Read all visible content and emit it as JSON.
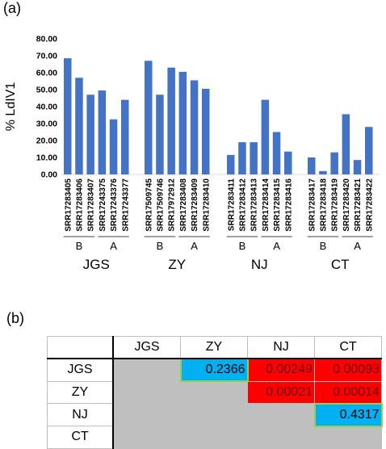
{
  "panel_a_label": "(a)",
  "panel_b_label": "(b)",
  "colors": {
    "bar": "#4472c4",
    "sig_high": "#00b0f0",
    "sig_low": "#ff0000",
    "na": "#bfbfbf"
  },
  "chart_data": {
    "type": "bar",
    "ylabel": "% LdIV1",
    "ylim": [
      0,
      80
    ],
    "yticks": [
      "0.00",
      "10.00",
      "20.00",
      "30.00",
      "40.00",
      "50.00",
      "60.00",
      "70.00",
      "80.00"
    ],
    "grid": false,
    "groups": [
      {
        "name": "JGS",
        "subgroups": [
          {
            "name": "B",
            "samples": [
              {
                "label": "SRR17283405",
                "value": 68.5
              },
              {
                "label": "SRR17283406",
                "value": 57.0
              },
              {
                "label": "SRR17283407",
                "value": 47.0
              }
            ]
          },
          {
            "name": "A",
            "samples": [
              {
                "label": "SRR17243375",
                "value": 49.5
              },
              {
                "label": "SRR17243376",
                "value": 32.5
              },
              {
                "label": "SRR17243377",
                "value": 44.0
              }
            ]
          }
        ]
      },
      {
        "name": "ZY",
        "subgroups": [
          {
            "name": "B",
            "samples": [
              {
                "label": "SRR17509745",
                "value": 67.0
              },
              {
                "label": "SRR17509746",
                "value": 47.0
              },
              {
                "label": "SRR17972912",
                "value": 63.0
              }
            ]
          },
          {
            "name": "A",
            "samples": [
              {
                "label": "SRR17283408",
                "value": 60.5
              },
              {
                "label": "SRR17283409",
                "value": 55.5
              },
              {
                "label": "SRR17283410",
                "value": 50.5
              }
            ]
          }
        ]
      },
      {
        "name": "NJ",
        "subgroups": [
          {
            "name": "B",
            "samples": [
              {
                "label": "SRR17283411",
                "value": 11.5
              },
              {
                "label": "SRR17283412",
                "value": 19.0
              },
              {
                "label": "SRR17283413",
                "value": 19.0
              }
            ]
          },
          {
            "name": "A",
            "samples": [
              {
                "label": "SRR17283414",
                "value": 44.0
              },
              {
                "label": "SRR17283415",
                "value": 25.0
              },
              {
                "label": "SRR17283416",
                "value": 13.5
              }
            ]
          }
        ]
      },
      {
        "name": "CT",
        "subgroups": [
          {
            "name": "B",
            "samples": [
              {
                "label": "SRR17283417",
                "value": 10.0
              },
              {
                "label": "SRR17283418",
                "value": 2.0
              },
              {
                "label": "SRR17283419",
                "value": 13.0
              }
            ]
          },
          {
            "name": "A",
            "samples": [
              {
                "label": "SRR17283420",
                "value": 35.5
              },
              {
                "label": "SRR17283421",
                "value": 8.5
              },
              {
                "label": "SRR17283422",
                "value": 28.0
              }
            ]
          }
        ]
      }
    ]
  },
  "pvalue_table": {
    "columns": [
      "JGS",
      "ZY",
      "NJ",
      "CT"
    ],
    "rows": [
      {
        "label": "JGS",
        "cells": [
          {
            "text": "",
            "kind": "na"
          },
          {
            "text": "0.2366",
            "kind": "high"
          },
          {
            "text": "0.00249",
            "kind": "low"
          },
          {
            "text": "0.00093",
            "kind": "low"
          }
        ]
      },
      {
        "label": "ZY",
        "cells": [
          {
            "text": "",
            "kind": "na"
          },
          {
            "text": "",
            "kind": "na"
          },
          {
            "text": "0.00021",
            "kind": "low"
          },
          {
            "text": "0.00014",
            "kind": "low"
          }
        ]
      },
      {
        "label": "NJ",
        "cells": [
          {
            "text": "",
            "kind": "na"
          },
          {
            "text": "",
            "kind": "na"
          },
          {
            "text": "",
            "kind": "na"
          },
          {
            "text": "0.4317",
            "kind": "high"
          }
        ]
      },
      {
        "label": "CT",
        "cells": [
          {
            "text": "",
            "kind": "na"
          },
          {
            "text": "",
            "kind": "na"
          },
          {
            "text": "",
            "kind": "na"
          },
          {
            "text": "",
            "kind": "na"
          }
        ]
      }
    ]
  }
}
